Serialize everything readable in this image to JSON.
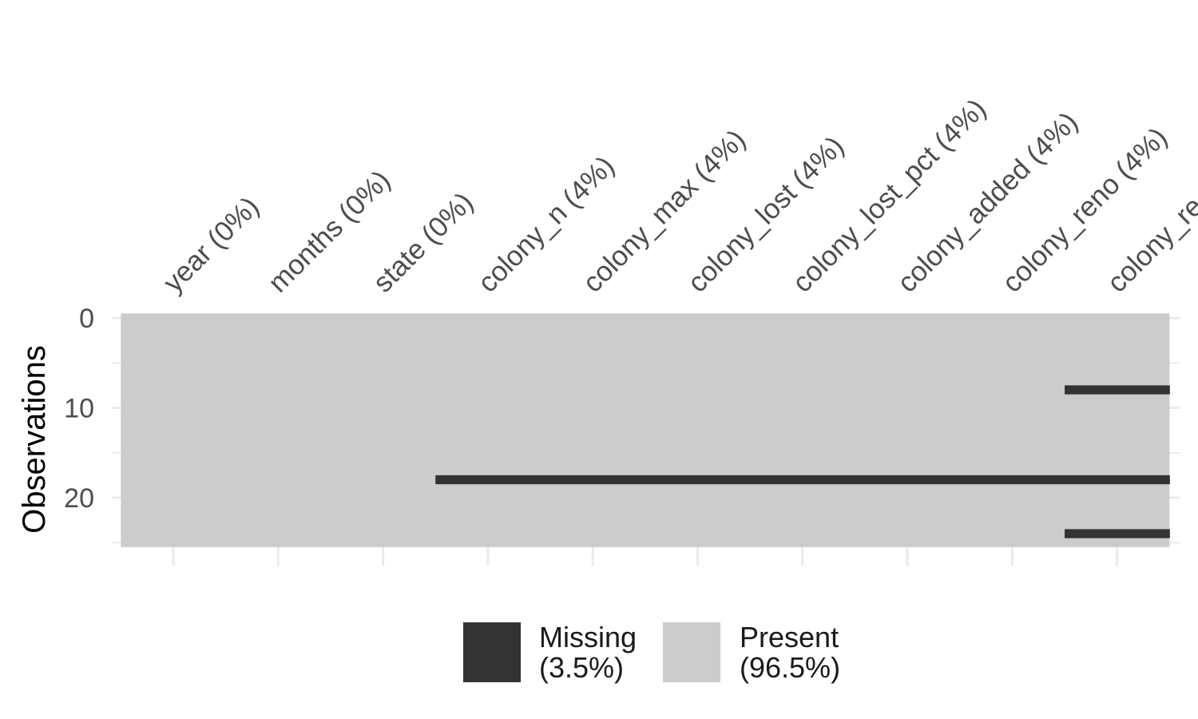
{
  "chart_data": {
    "type": "heatmap",
    "title": "",
    "xlabel": "",
    "ylabel": "Observations",
    "columns": [
      {
        "name": "year",
        "pct_label": "year (0%)"
      },
      {
        "name": "months",
        "pct_label": "months (0%)"
      },
      {
        "name": "state",
        "pct_label": "state (0%)"
      },
      {
        "name": "colony_n",
        "pct_label": "colony_n (4%)"
      },
      {
        "name": "colony_max",
        "pct_label": "colony_max (4%)"
      },
      {
        "name": "colony_lost",
        "pct_label": "colony_lost (4%)"
      },
      {
        "name": "colony_lost_pct",
        "pct_label": "colony_lost_pct (4%)"
      },
      {
        "name": "colony_added",
        "pct_label": "colony_added (4%)"
      },
      {
        "name": "colony_reno",
        "pct_label": "colony_reno (4%)"
      },
      {
        "name": "colony_reno_pct",
        "pct_label": "colony_re"
      }
    ],
    "n_rows": 26,
    "y_ticks": [
      0,
      10,
      20
    ],
    "ylim": [
      0,
      26
    ],
    "missing_cells": [
      {
        "row": 8,
        "columns": [
          "colony_reno_pct"
        ]
      },
      {
        "row": 18,
        "columns": [
          "colony_n",
          "colony_max",
          "colony_lost",
          "colony_lost_pct",
          "colony_added",
          "colony_reno",
          "colony_reno_pct"
        ]
      },
      {
        "row": 24,
        "columns": [
          "colony_reno_pct"
        ]
      }
    ],
    "colors": {
      "missing": "#333333",
      "present": "#cccccc",
      "grid": "#ebebeb"
    },
    "grid": true,
    "legend_position": "bottom",
    "legend": [
      {
        "label": "Missing",
        "pct": "(3.5%)",
        "color": "#333333"
      },
      {
        "label": "Present",
        "pct": "(96.5%)",
        "color": "#cccccc"
      }
    ]
  }
}
